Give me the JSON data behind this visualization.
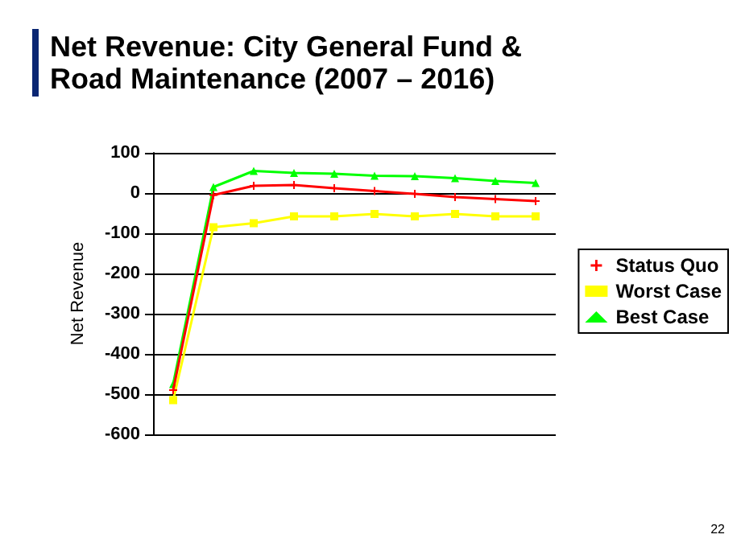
{
  "chart_data": {
    "type": "line",
    "title": "Net Revenue: City General Fund & Road Maintenance (2007 – 2016)",
    "ylabel": "Net Revenue",
    "categories": [
      null,
      null,
      null,
      null,
      null,
      null,
      null,
      null,
      null,
      null
    ],
    "series": [
      {
        "name": "Status Quo",
        "color": "#ff0000",
        "marker": "cross",
        "values": [
          -490,
          -5,
          18,
          20,
          12,
          5,
          -2,
          -10,
          -15,
          -20
        ]
      },
      {
        "name": "Worst Case",
        "color": "#ffff00",
        "marker": "square",
        "values": [
          -515,
          -85,
          -75,
          -58,
          -58,
          -52,
          -58,
          -52,
          -58,
          -58
        ]
      },
      {
        "name": "Best Case",
        "color": "#00ff00",
        "marker": "triangle",
        "values": [
          -475,
          15,
          55,
          50,
          48,
          43,
          42,
          37,
          30,
          25
        ]
      }
    ],
    "ylim": [
      -600,
      100
    ],
    "yticks": [
      -600,
      -500,
      -400,
      -300,
      -200,
      -100,
      0,
      100
    ],
    "grid": "y",
    "legend": "right",
    "tick_labels": "y",
    "line_style": "solid",
    "annotations": [
      "22"
    ]
  }
}
